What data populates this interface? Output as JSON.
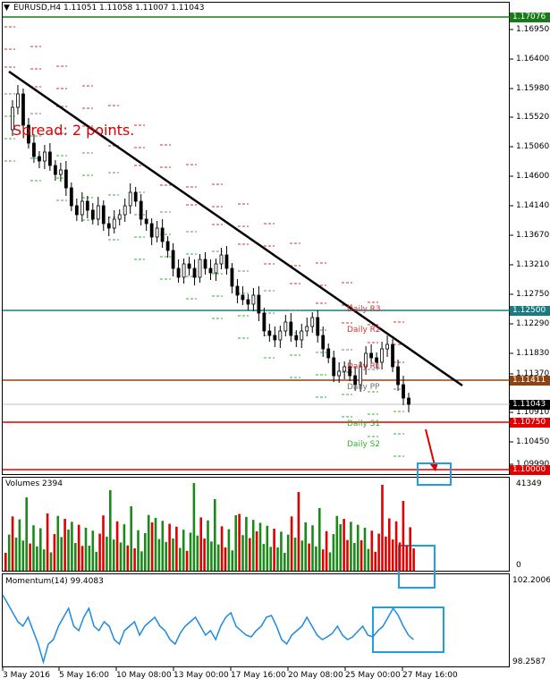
{
  "header": {
    "symbol_info": "EURUSD,H4  1.11051 1.11058 1.11007 1.11043"
  },
  "annotation": {
    "spread": "Spread: 2 points."
  },
  "pivot_labels": {
    "r3": "Daily R3",
    "r2": "Daily R2",
    "r1": "Daily R1",
    "pp": "Daily PP",
    "s1": "Daily S1",
    "s2": "Daily S2"
  },
  "price_axis": {
    "ticks": [
      "1.16950",
      "1.16400",
      "1.15980",
      "1.15520",
      "1.15060",
      "1.14600",
      "1.14140",
      "1.13670",
      "1.13210",
      "1.12750",
      "1.12290",
      "1.11830",
      "1.11370",
      "1.10910",
      "1.10450",
      "1.09990"
    ],
    "badges": [
      {
        "text": "1.17076",
        "color": "#1a7a1a"
      },
      {
        "text": "1.12500",
        "color": "#1a7a80"
      },
      {
        "text": "1.11411",
        "color": "#8b4513"
      },
      {
        "text": "1.11043",
        "color": "#000000"
      },
      {
        "text": "1.10750",
        "color": "#e00000"
      },
      {
        "text": "1.10000",
        "color": "#e00000"
      }
    ]
  },
  "volumes": {
    "label": "Volumes 2394",
    "max_label": "41349",
    "min_label": "0"
  },
  "momentum": {
    "label": "Momentum(14) 99.4083",
    "max_label": "102.2006",
    "min_label": "98.2587"
  },
  "time_axis": [
    "3 May 2016",
    "5 May 16:00",
    "10 May 08:00",
    "13 May 00:00",
    "17 May 16:00",
    "20 May 08:00",
    "25 May 00:00",
    "27 May 16:00"
  ],
  "colors": {
    "green_level": "#1a7a1a",
    "teal_level": "#1a7a80",
    "brown_level": "#8b4513",
    "red_level": "#e00000",
    "highlight_box": "#1ea0e0",
    "pivot_red": "#d03030",
    "pivot_green": "#30b030"
  }
}
